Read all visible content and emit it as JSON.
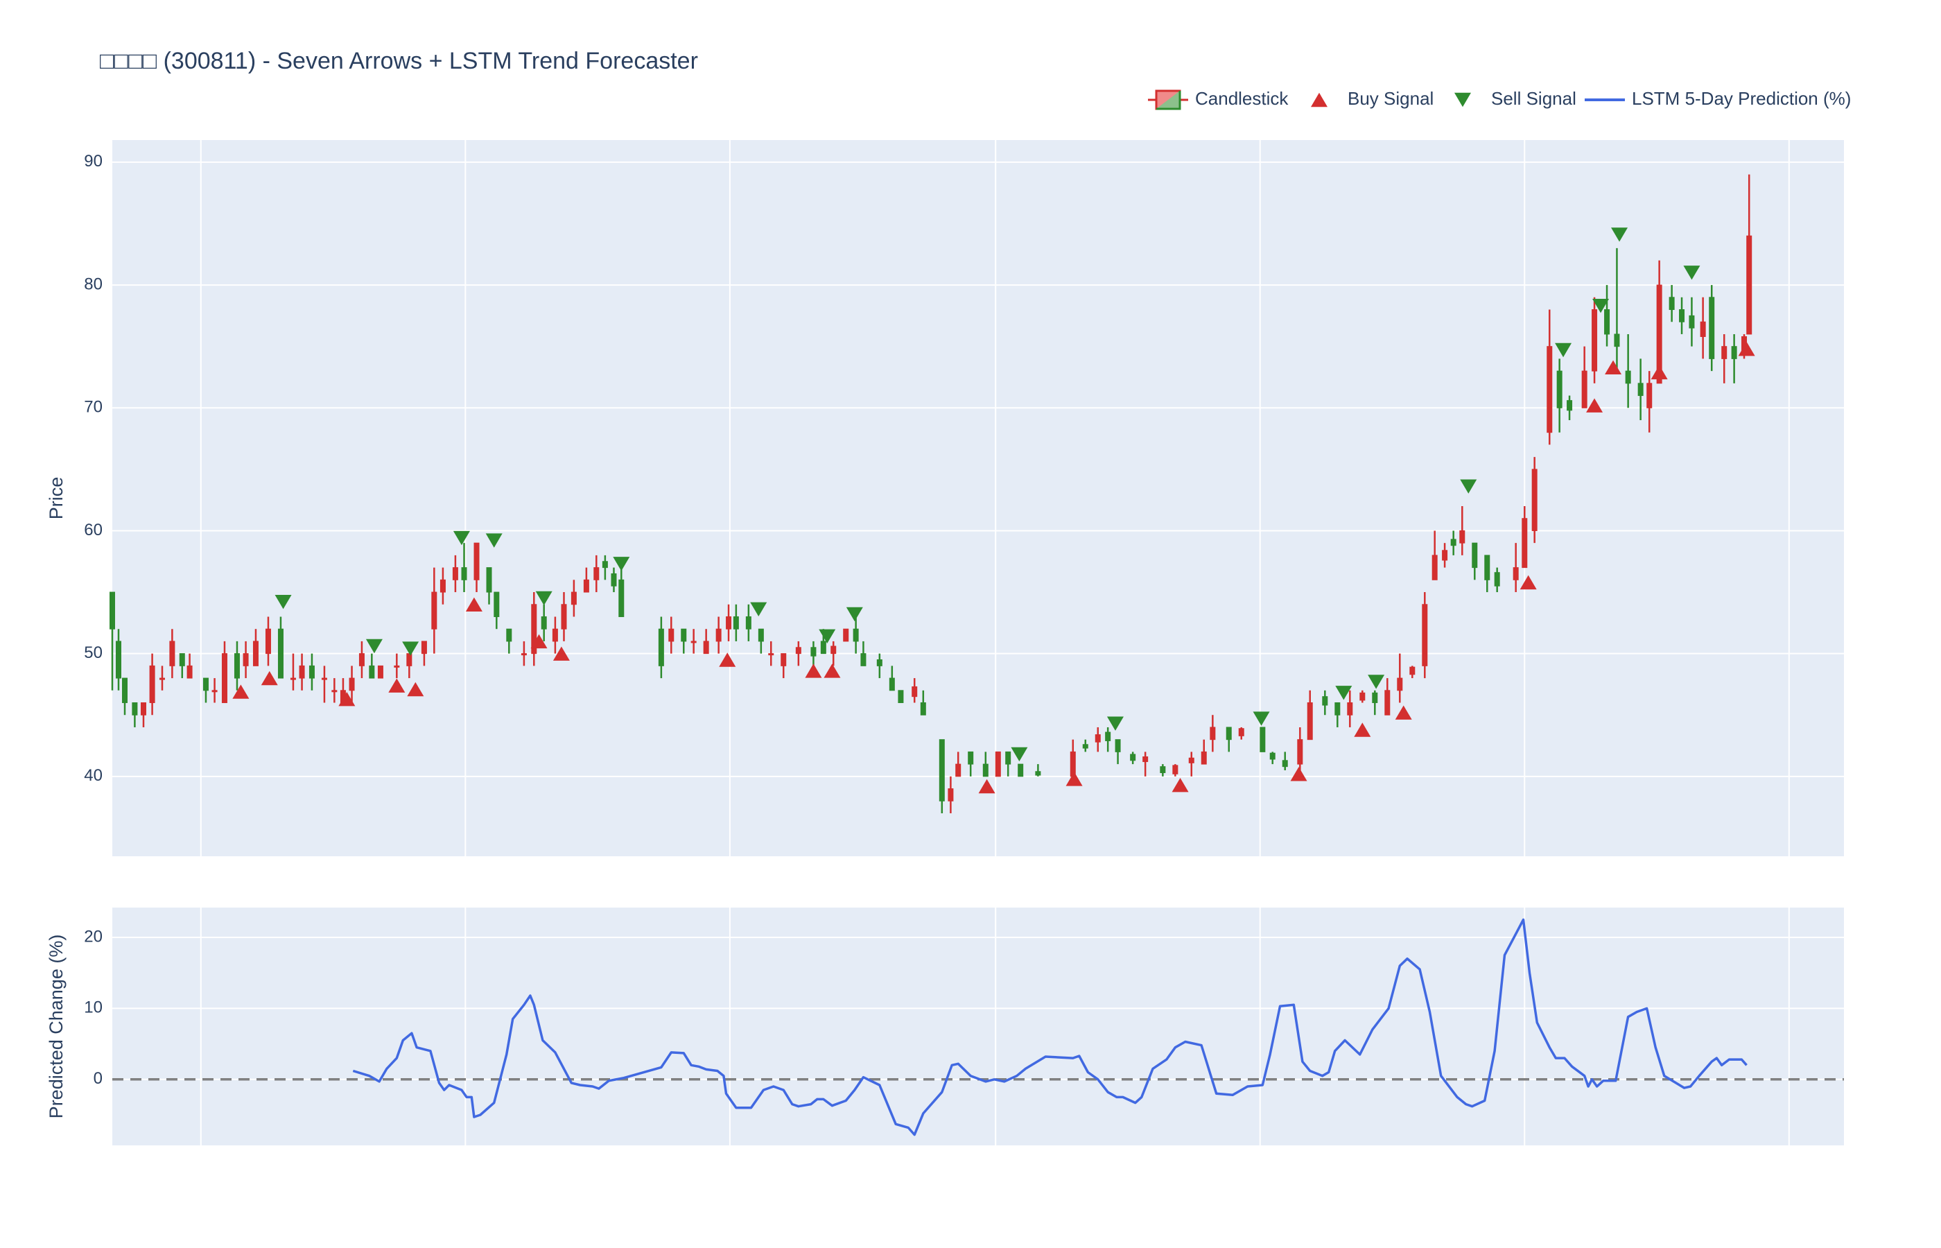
{
  "chart_data": [
    {
      "type": "candlestick",
      "title": "□□□□ (300811) - Seven Arrows + LSTM Trend Forecaster",
      "ylabel": "Price",
      "xlim": [
        0,
        1388
      ],
      "xticks": [
        71,
        283,
        495,
        708,
        920,
        1132,
        1344
      ],
      "ylim": [
        33.5,
        91.8
      ],
      "yticks": [
        40,
        50,
        60,
        70,
        80,
        90
      ],
      "grid": true,
      "legend": "top-right",
      "candles": {
        "name": "Candlestick",
        "increasing_color": "#d32f2f",
        "decreasing_color": "#2e8b2e",
        "x": [
          0,
          5,
          10,
          18,
          25,
          32,
          40,
          48,
          56,
          62,
          75,
          82,
          90,
          100,
          107,
          115,
          125,
          135,
          145,
          152,
          160,
          170,
          178,
          185,
          192,
          200,
          208,
          215,
          228,
          238,
          250,
          258,
          265,
          275,
          282,
          292,
          302,
          308,
          318,
          330,
          338,
          346,
          355,
          362,
          370,
          380,
          388,
          395,
          402,
          408,
          440,
          448,
          458,
          466,
          476,
          486,
          494,
          500,
          510,
          520,
          528,
          538,
          550,
          562,
          570,
          578,
          588,
          596,
          602,
          615,
          625,
          632,
          643,
          650,
          665,
          672,
          678,
          688,
          700,
          710,
          718,
          728,
          742,
          770,
          780,
          790,
          798,
          806,
          818,
          828,
          842,
          852,
          865,
          875,
          882,
          895,
          905,
          922,
          930,
          940,
          952,
          960,
          972,
          982,
          992,
          1002,
          1012,
          1022,
          1032,
          1042,
          1052,
          1060,
          1068,
          1075,
          1082,
          1092,
          1102,
          1110,
          1125,
          1132,
          1140,
          1152,
          1160,
          1168,
          1180,
          1188,
          1198,
          1206,
          1215,
          1225,
          1232,
          1240,
          1250,
          1258,
          1266,
          1275,
          1282,
          1292,
          1300,
          1308,
          1312
        ],
        "open": [
          55,
          51,
          48,
          46,
          45,
          46,
          48,
          49,
          50,
          48,
          48,
          47,
          46,
          50,
          49,
          49,
          50,
          52,
          48,
          48,
          49,
          48,
          47,
          46,
          47,
          49,
          49,
          48,
          49,
          49,
          50,
          52,
          55,
          56,
          57,
          56,
          57,
          55,
          52,
          50,
          50,
          53,
          51,
          52,
          54,
          55,
          56,
          57.5,
          56.5,
          56,
          52,
          51,
          52,
          51,
          50,
          51,
          52,
          53,
          53,
          52,
          50,
          49,
          50,
          50.5,
          51,
          50,
          51,
          52,
          50,
          49.5,
          48,
          47,
          46.5,
          46,
          43,
          38,
          40,
          42,
          41,
          40,
          42,
          41,
          40.4,
          40,
          42.6,
          42.8,
          43.6,
          43,
          41.8,
          41.2,
          40.8,
          40.2,
          41.1,
          41,
          43,
          44,
          43.3,
          44,
          41.9,
          41.3,
          41,
          43,
          46.5,
          46,
          45,
          46.2,
          46.8,
          45,
          47,
          48.3,
          49,
          56,
          57.6,
          59.3,
          59,
          59,
          58,
          56.6,
          56,
          57,
          60,
          68,
          73,
          70.6,
          70,
          73,
          78,
          76,
          73,
          72,
          70,
          72,
          79,
          78,
          77.5,
          75.8,
          79,
          74,
          75,
          74.5,
          76
        ],
        "high": [
          55,
          52,
          48,
          46,
          46,
          50,
          49,
          52,
          50,
          50,
          48,
          48,
          51,
          51,
          51,
          52,
          53,
          53,
          50,
          50,
          50,
          49,
          48,
          48,
          49,
          51,
          50,
          49,
          50,
          50,
          51,
          57,
          57,
          58,
          59,
          59,
          57,
          55,
          52,
          51,
          55,
          54,
          53,
          55,
          56,
          57,
          58,
          58,
          57,
          57,
          53,
          53,
          52,
          52,
          52,
          53,
          54,
          54,
          54,
          52,
          51,
          50,
          51,
          51,
          52,
          51,
          52,
          53,
          51,
          50,
          49,
          47,
          48,
          47,
          43,
          40,
          42,
          42,
          42,
          42,
          42,
          41,
          41,
          43,
          43,
          44,
          44,
          43,
          42,
          42,
          41,
          41,
          42,
          43,
          45,
          44,
          44,
          44,
          42,
          42,
          44,
          47,
          47,
          46,
          47,
          47,
          47,
          48,
          50,
          49,
          55,
          60,
          59,
          60,
          62,
          59,
          58,
          57,
          59,
          62,
          66,
          78,
          74,
          71,
          75,
          79,
          80,
          83,
          76,
          74,
          73,
          82,
          80,
          79,
          79,
          79,
          80,
          76,
          76,
          76,
          89
        ],
        "low": [
          47,
          47,
          45,
          44,
          44,
          45,
          47,
          48,
          48,
          48,
          46,
          46,
          46,
          47,
          48,
          49,
          49,
          48,
          47,
          47,
          47,
          46,
          46,
          46,
          46,
          48,
          48,
          48,
          48,
          48,
          49,
          50,
          54,
          55,
          55,
          55,
          54,
          52,
          50,
          49,
          49,
          51,
          50,
          51,
          53,
          55,
          55,
          56,
          55,
          53,
          48,
          50,
          50,
          50,
          50,
          50,
          51,
          51,
          51,
          50,
          49,
          48,
          49,
          49,
          50,
          49,
          51,
          50,
          49,
          48,
          47,
          46,
          46,
          45,
          37,
          37,
          40,
          40,
          40,
          40,
          40,
          40,
          40,
          40,
          42,
          42,
          42,
          41,
          41,
          40,
          40,
          40,
          40,
          41,
          42,
          42,
          43,
          42,
          41,
          40.5,
          40,
          43,
          45,
          44,
          44,
          46,
          45,
          45,
          46,
          48,
          48,
          56,
          57,
          58,
          58,
          56,
          55,
          55,
          55,
          57,
          59,
          67,
          68,
          69,
          70,
          72,
          75,
          73,
          70,
          69,
          68,
          72,
          77,
          76,
          75,
          74,
          73,
          72,
          72,
          74,
          76
        ],
        "close": [
          52,
          48,
          46,
          45,
          46,
          49,
          48,
          51,
          49,
          49,
          47,
          47,
          50,
          48,
          50,
          51,
          52,
          48,
          48,
          49,
          48,
          48,
          47,
          47,
          48,
          50,
          48,
          49,
          49,
          50,
          51,
          55,
          56,
          57,
          56,
          59,
          55,
          53,
          51,
          50,
          54,
          52,
          52,
          54,
          55,
          56,
          57,
          57,
          55.5,
          53,
          49,
          52,
          51,
          51,
          51,
          52,
          53,
          52,
          52,
          51,
          50,
          50,
          50.5,
          49.8,
          50,
          50.6,
          52,
          51,
          49,
          49,
          47,
          46,
          47.3,
          45,
          38,
          39,
          41,
          41,
          40,
          42,
          41,
          40,
          40.1,
          42,
          42.3,
          43.4,
          42.9,
          42,
          41.3,
          41.6,
          40.3,
          40.9,
          41.5,
          42,
          44,
          43,
          43.9,
          42,
          41.4,
          40.8,
          43,
          46,
          45.8,
          45,
          46,
          46.8,
          46,
          47,
          48,
          48.9,
          54,
          58,
          58.4,
          58.8,
          60,
          57,
          56,
          55.5,
          57,
          61,
          65,
          75,
          70,
          69.8,
          73,
          78,
          76,
          75,
          72,
          71,
          72,
          80,
          78,
          77,
          76.5,
          77,
          74,
          75,
          74,
          75.8,
          84
        ]
      },
      "markers": [
        {
          "name": "Buy Signal",
          "color": "#d32f2f",
          "symbol": "triangle-up",
          "x": [
            103,
            126,
            188,
            228,
            243,
            290,
            342,
            360,
            493,
            562,
            577,
            701,
            771,
            856,
            951,
            1002,
            1035,
            1135,
            1188,
            1203,
            1240,
            1310
          ],
          "values": [
            46.9,
            48,
            46.3,
            47.4,
            47.1,
            54,
            51,
            50,
            49.5,
            48.6,
            48.6,
            39.2,
            39.8,
            39.3,
            40.2,
            43.8,
            45.2,
            55.8,
            70.2,
            73.3,
            72.9,
            74.8
          ]
        },
        {
          "name": "Sell Signal",
          "color": "#2e8b2e",
          "symbol": "triangle-down",
          "x": [
            137,
            210,
            239,
            280,
            306,
            346,
            408,
            518,
            573,
            595,
            727,
            804,
            921,
            987,
            1013,
            1087,
            1163,
            1193,
            1208,
            1266
          ],
          "values": [
            54.2,
            50.6,
            50.4,
            59.4,
            59.2,
            54.5,
            57.3,
            53.6,
            51.4,
            53.2,
            41.8,
            44.3,
            44.7,
            46.8,
            47.7,
            63.6,
            74.7,
            78.3,
            84.1,
            81
          ]
        }
      ]
    },
    {
      "type": "line",
      "ylabel": "Predicted Change (%)",
      "xlim": [
        0,
        1388
      ],
      "xticks": [
        71,
        283,
        495,
        708,
        920,
        1132,
        1344
      ],
      "ylim": [
        -9.3,
        24.2
      ],
      "yticks": [
        0,
        10,
        20
      ],
      "grid": true,
      "zero_line": true,
      "series": [
        {
          "name": "LSTM 5-Day Prediction (%)",
          "color": "#4169e1",
          "x": [
            193,
            206,
            214,
            220,
            228,
            233,
            240,
            244,
            255,
            262,
            266,
            270,
            280,
            284,
            288,
            290,
            295,
            306,
            316,
            321,
            330,
            335,
            338,
            345,
            355,
            368,
            375,
            385,
            390,
            398,
            410,
            440,
            448,
            458,
            464,
            470,
            476,
            485,
            490,
            492,
            500,
            512,
            522,
            530,
            538,
            545,
            550,
            560,
            565,
            570,
            577,
            588,
            595,
            602,
            615,
            628,
            638,
            643,
            650,
            665,
            673,
            678,
            688,
            700,
            707,
            715,
            725,
            732,
            748,
            770,
            775,
            782,
            790,
            798,
            805,
            810,
            820,
            825,
            834,
            845,
            852,
            860,
            873,
            885,
            898,
            910,
            922,
            928,
            936,
            947,
            954,
            960,
            970,
            975,
            980,
            988,
            1000,
            1010,
            1023,
            1032,
            1038,
            1048,
            1056,
            1065,
            1078,
            1085,
            1090,
            1100,
            1108,
            1116,
            1125,
            1131,
            1136,
            1142,
            1152,
            1157,
            1164,
            1170,
            1180,
            1183,
            1186,
            1190,
            1195,
            1205,
            1215,
            1222,
            1230,
            1237,
            1244,
            1260,
            1265,
            1272,
            1282,
            1286,
            1290,
            1296,
            1306,
            1310
          ],
          "values": [
            1.2,
            0.5,
            -0.3,
            1.5,
            3,
            5.5,
            6.5,
            4.5,
            4,
            -0.5,
            -1.5,
            -0.8,
            -1.5,
            -2.5,
            -2.5,
            -5.3,
            -5,
            -3.3,
            3.5,
            8.5,
            10.5,
            11.8,
            10.5,
            5.5,
            3.8,
            -0.5,
            -0.8,
            -1,
            -1.3,
            -0.2,
            0.2,
            1.7,
            3.8,
            3.7,
            2,
            1.8,
            1.4,
            1.2,
            0.5,
            -2,
            -4,
            -4,
            -1.5,
            -1,
            -1.5,
            -3.5,
            -3.8,
            -3.5,
            -2.8,
            -2.8,
            -3.7,
            -3,
            -1.5,
            0.3,
            -0.8,
            -6.3,
            -6.8,
            -7.8,
            -4.8,
            -1.8,
            2,
            2.2,
            0.5,
            -0.3,
            0,
            -0.3,
            0.5,
            1.5,
            3.2,
            3,
            3.3,
            1,
            0,
            -1.8,
            -2.5,
            -2.5,
            -3.3,
            -2.5,
            1.5,
            2.8,
            4.5,
            5.3,
            4.8,
            -2,
            -2.2,
            -1,
            -0.8,
            3.5,
            10.3,
            10.5,
            2.5,
            1.2,
            0.5,
            1,
            4,
            5.5,
            3.5,
            7,
            10,
            16,
            17,
            15.5,
            9.5,
            0.5,
            -2.5,
            -3.5,
            -3.8,
            -3,
            4,
            17.5,
            20.5,
            22.5,
            15,
            8,
            4.5,
            3,
            3,
            1.8,
            0.5,
            -1,
            0,
            -1,
            -0.2,
            -0.2,
            8.8,
            9.5,
            10,
            4.5,
            0.5,
            -1.2,
            -1,
            0.5,
            2.5,
            3,
            2,
            2.8,
            2.8,
            2
          ]
        }
      ]
    }
  ]
}
